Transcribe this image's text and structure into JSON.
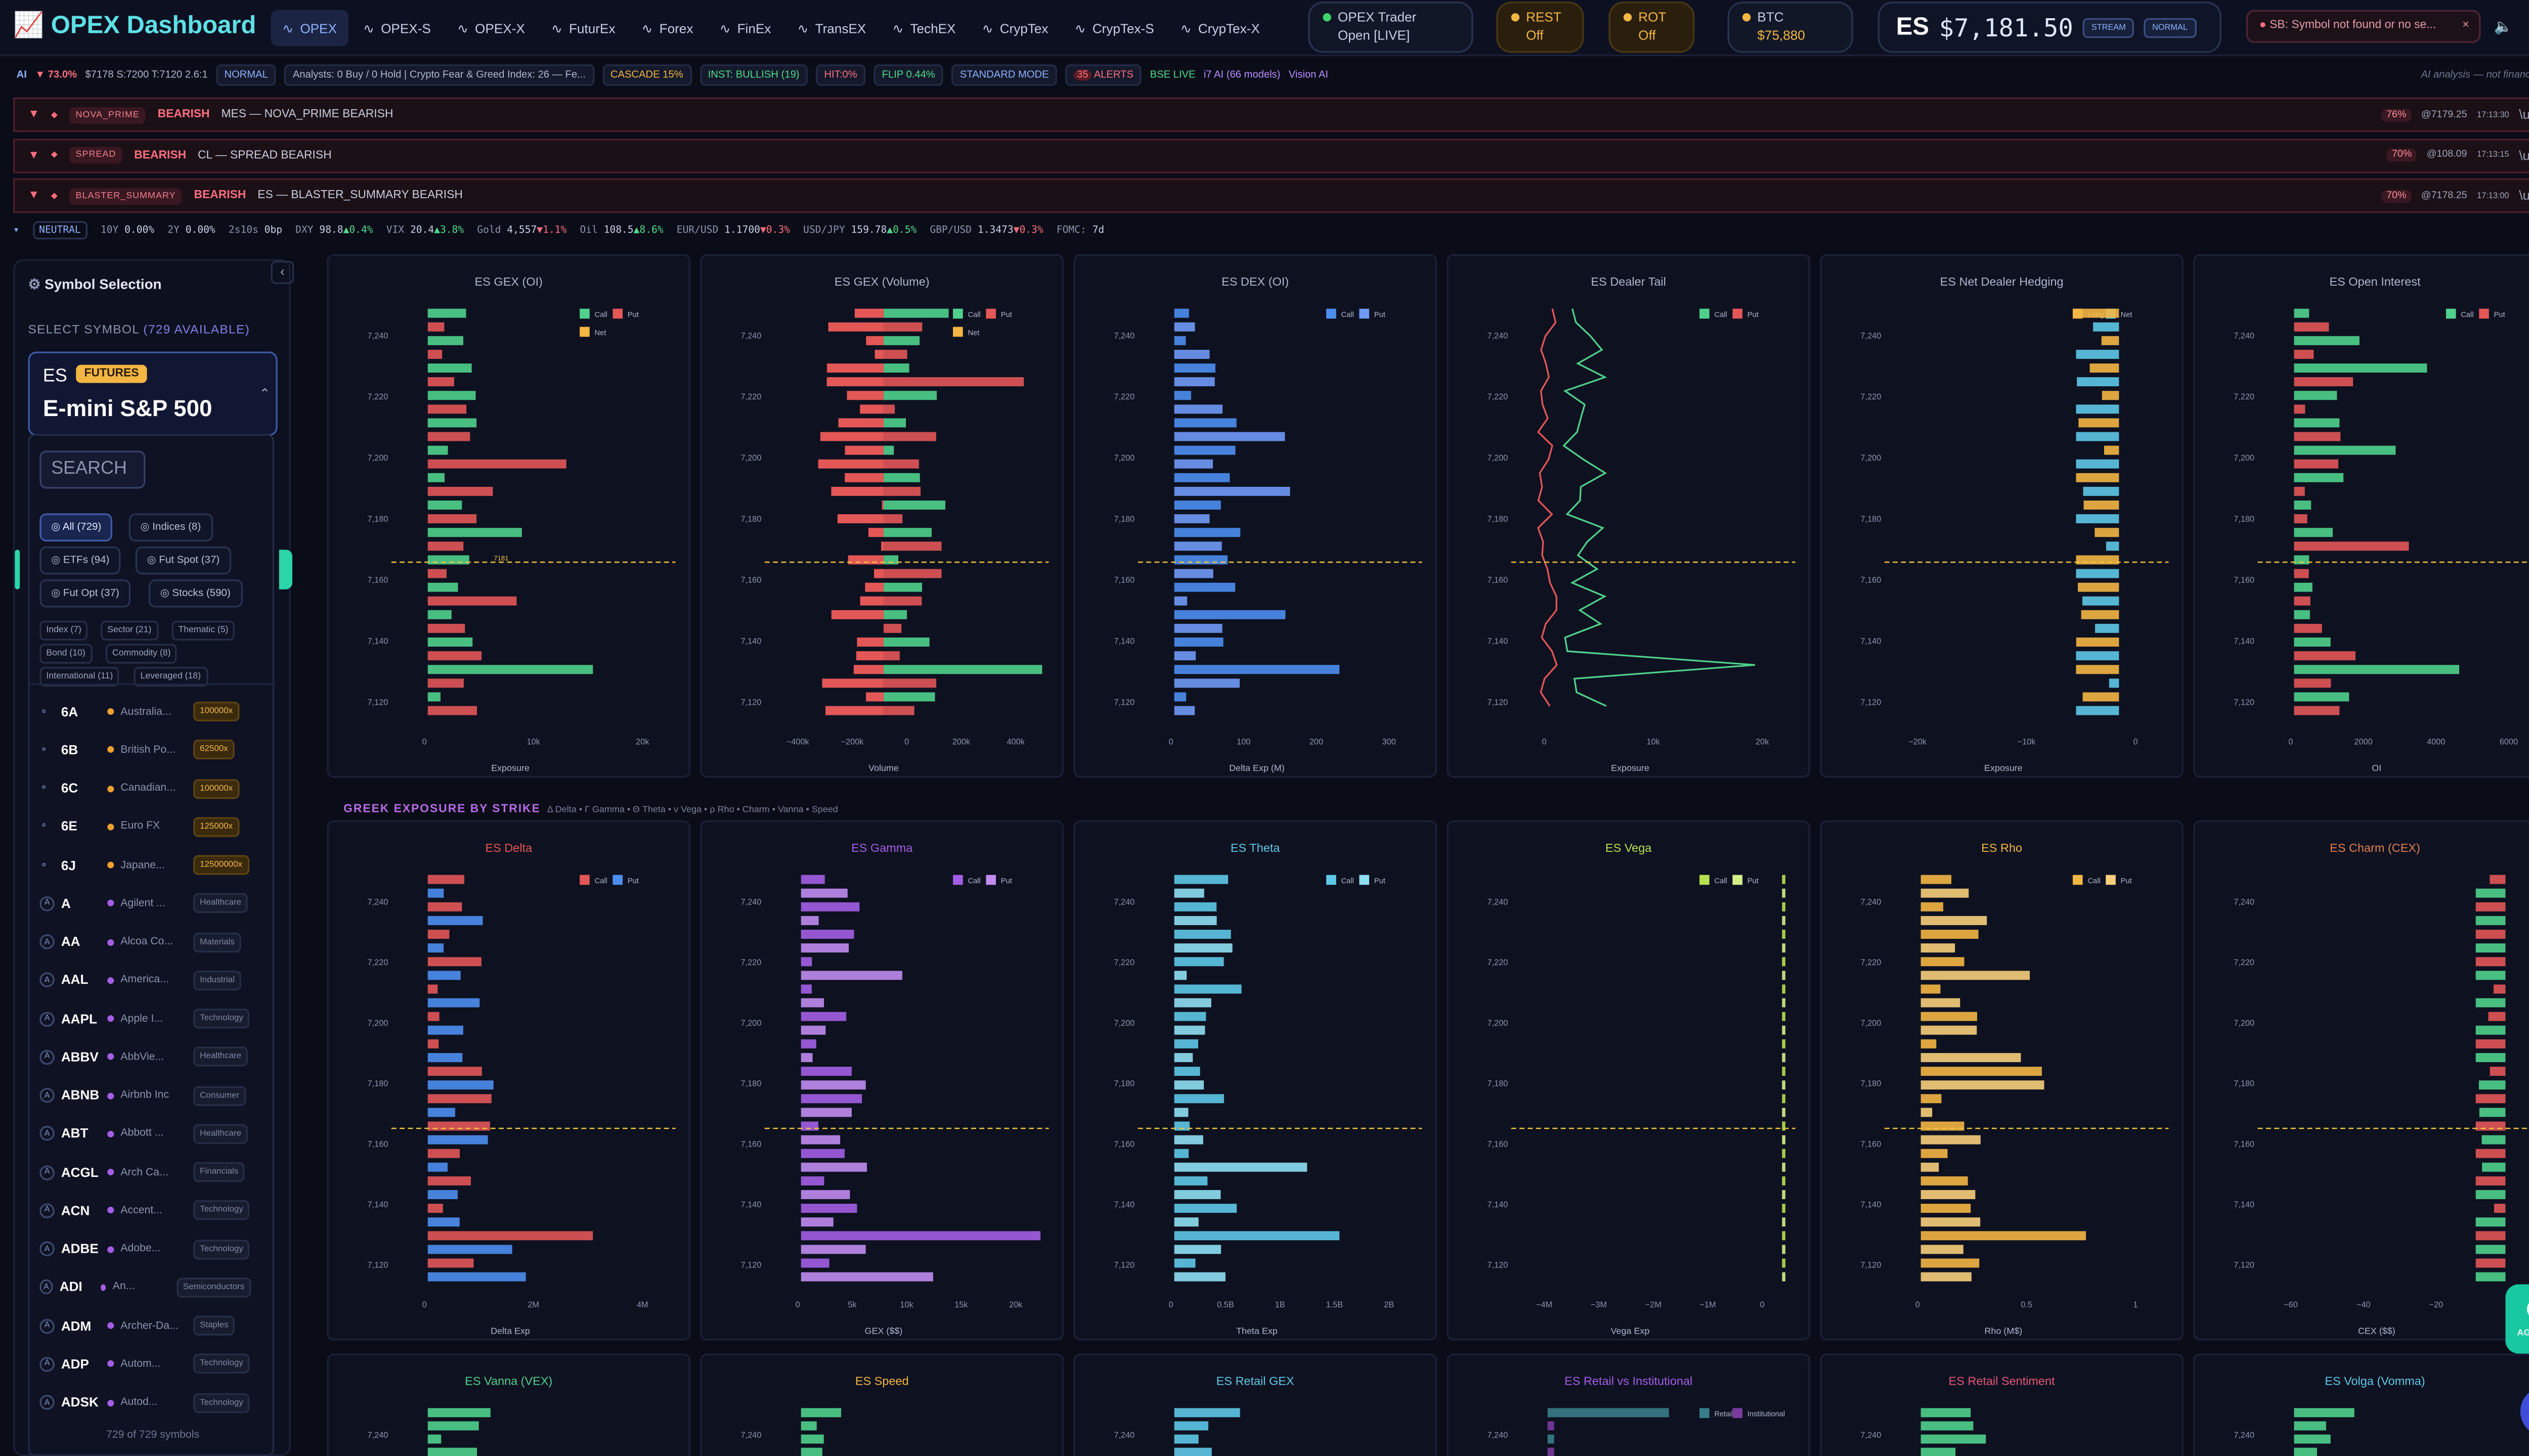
{
  "app": {
    "logo": "OPEX Dashboard"
  },
  "nav": [
    "OPEX",
    "OPEX-S",
    "OPEX-X",
    "FuturEx",
    "Forex",
    "FinEx",
    "TransEX",
    "TechEX",
    "CrypTex",
    "CrypTex-S",
    "CrypTex-X"
  ],
  "status": {
    "trader_line1": "OPEX Trader",
    "trader_line2": "Open [LIVE]",
    "rest_line1": "REST",
    "rest_line2": "Off",
    "rot_line1": "ROT",
    "rot_line2": "Off",
    "btc_line1": "BTC",
    "btc_line2": "$75,880"
  },
  "price": {
    "symbol": "ES",
    "value": "$7,181.50",
    "stream": "STREAM",
    "mode": "NORMAL"
  },
  "error": "SB: Symbol not found or no se...",
  "ai_strip": {
    "ai": "AI",
    "conf": "▼ 73.0%",
    "levels": "$7178 S:7200 T:7120 2.6:1",
    "normal": "NORMAL",
    "analysts": "Analysts: 0 Buy / 0 Hold | Crypto Fear & Greed Index: 26 — Fe...",
    "cascade": "CASCADE 15%",
    "inst": "INST: BULLISH (19)",
    "hit": "HIT:0%",
    "flip": "FLIP 0.44%",
    "std": "STANDARD MODE",
    "alerts": "ALERTS",
    "alerts_count": "35",
    "bse": "BSE LIVE",
    "i7": "i7 AI (66 models)",
    "vision": "Vision AI",
    "disclaimer": "AI analysis — not financial advice"
  },
  "alerts": [
    {
      "tag": "NOVA_PRIME",
      "dir": "BEARISH",
      "text": "MES — NOVA_PRIME BEARISH",
      "pct": "76%",
      "price": "@7179.25",
      "time": "17:13:30",
      "code": "\\u00D7"
    },
    {
      "tag": "SPREAD",
      "dir": "BEARISH",
      "text": "CL — SPREAD BEARISH",
      "pct": "70%",
      "price": "@108.09",
      "time": "17:13:15",
      "code": "\\u00D7"
    },
    {
      "tag": "BLASTER_SUMMARY",
      "dir": "BEARISH",
      "text": "ES — BLASTER_SUMMARY BEARISH",
      "pct": "70%",
      "price": "@7178.25",
      "time": "17:13:00",
      "code": "\\u00D7"
    }
  ],
  "macro": [
    {
      "k": "NEUTRAL",
      "v": "",
      "c": ""
    },
    {
      "k": "10Y",
      "v": "0.00%",
      "c": ""
    },
    {
      "k": "2Y",
      "v": "0.00%",
      "c": ""
    },
    {
      "k": "2s10s",
      "v": "0bp",
      "c": ""
    },
    {
      "k": "DXY",
      "v": "98.8",
      "c": "▲0.4%"
    },
    {
      "k": "VIX",
      "v": "20.4",
      "c": "▲3.8%"
    },
    {
      "k": "Gold",
      "v": "4,557",
      "c": "▼1.1%"
    },
    {
      "k": "Oil",
      "v": "108.5",
      "c": "▲8.6%"
    },
    {
      "k": "EUR/USD",
      "v": "1.1700",
      "c": "▼0.3%"
    },
    {
      "k": "USD/JPY",
      "v": "159.78",
      "c": "▲0.5%"
    },
    {
      "k": "GBP/USD",
      "v": "1.3473",
      "c": "▼0.3%"
    },
    {
      "k": "FOMC:",
      "v": "7d",
      "c": ""
    }
  ],
  "sidebar": {
    "title": "Symbol Selection",
    "select_label": "SELECT SYMBOL",
    "available": "(729 AVAILABLE)",
    "selected_sym": "ES",
    "selected_type": "FUTURES",
    "selected_name": "E-mini S&P 500",
    "search_placeholder": "SEARCH",
    "filters": [
      "All (729)",
      "Indices (8)",
      "ETFs (94)",
      "Fut Spot (37)",
      "Fut Opt (37)",
      "Stocks (590)"
    ],
    "subfilters": [
      "Index (7)",
      "Sector (21)",
      "Thematic (5)",
      "Bond (10)",
      "Commodity (8)",
      "International (11)",
      "Leveraged (18)"
    ],
    "symbols": [
      {
        "t": "6A",
        "n": "Australia...",
        "b": "100000x",
        "k": "mult"
      },
      {
        "t": "6B",
        "n": "British Po...",
        "b": "62500x",
        "k": "mult"
      },
      {
        "t": "6C",
        "n": "Canadian...",
        "b": "100000x",
        "k": "mult"
      },
      {
        "t": "6E",
        "n": "Euro FX",
        "b": "125000x",
        "k": "mult"
      },
      {
        "t": "6J",
        "n": "Japane...",
        "b": "12500000x",
        "k": "mult"
      },
      {
        "t": "A",
        "n": "Agilent ...",
        "b": "Healthcare",
        "k": "sec"
      },
      {
        "t": "AA",
        "n": "Alcoa Co...",
        "b": "Materials",
        "k": "sec"
      },
      {
        "t": "AAL",
        "n": "America...",
        "b": "Industrial",
        "k": "sec"
      },
      {
        "t": "AAPL",
        "n": "Apple I...",
        "b": "Technology",
        "k": "sec"
      },
      {
        "t": "ABBV",
        "n": "AbbVie...",
        "b": "Healthcare",
        "k": "sec"
      },
      {
        "t": "ABNB",
        "n": "Airbnb Inc",
        "b": "Consumer",
        "k": "sec"
      },
      {
        "t": "ABT",
        "n": "Abbott ...",
        "b": "Healthcare",
        "k": "sec"
      },
      {
        "t": "ACGL",
        "n": "Arch Ca...",
        "b": "Financials",
        "k": "sec"
      },
      {
        "t": "ACN",
        "n": "Accent...",
        "b": "Technology",
        "k": "sec"
      },
      {
        "t": "ADBE",
        "n": "Adobe...",
        "b": "Technology",
        "k": "sec"
      },
      {
        "t": "ADI",
        "n": "An...",
        "b": "Semiconductors",
        "k": "sec"
      },
      {
        "t": "ADM",
        "n": "Archer-Da...",
        "b": "Staples",
        "k": "sec"
      },
      {
        "t": "ADP",
        "n": "Autom...",
        "b": "Technology",
        "k": "sec"
      },
      {
        "t": "ADSK",
        "n": "Autod...",
        "b": "Technology",
        "k": "sec"
      }
    ],
    "footer": "729 of 729 symbols"
  },
  "greek_header": {
    "title": "GREEK EXPOSURE BY STRIKE",
    "sub": "Δ Delta • Γ Gamma • Θ Theta • ν Vega • ρ Rho • Charm • Vanna • Speed"
  },
  "agents_label": "AGENTS",
  "chart_data": [
    {
      "id": "gex-oi",
      "type": "bar",
      "title": "ES GEX (OI)",
      "xlabel": "Exposure",
      "xticks": [
        "0",
        "10k",
        "20k"
      ],
      "legend": [
        "Call",
        "Put",
        "Net"
      ],
      "yticks": [
        "7,240",
        "7,220",
        "7,200",
        "7,180",
        "7,160",
        "7,140",
        "7,120"
      ],
      "spot": "7181"
    },
    {
      "id": "gex-vol",
      "type": "bar",
      "title": "ES GEX (Volume)",
      "xlabel": "Volume",
      "xticks": [
        "−400k",
        "−200k",
        "0",
        "200k",
        "400k"
      ],
      "legend": [
        "Call",
        "Put",
        "Net"
      ],
      "yticks": [
        "7,240",
        "7,220",
        "7,200",
        "7,180",
        "7,160",
        "7,140",
        "7,120"
      ]
    },
    {
      "id": "dex-oi",
      "type": "bar",
      "title": "ES DEX (OI)",
      "xlabel": "Delta Exp (M)",
      "xticks": [
        "0",
        "100",
        "200",
        "300"
      ],
      "legend": [
        "Call",
        "Put"
      ],
      "yticks": [
        "7,240",
        "7,220",
        "7,200",
        "7,180",
        "7,160",
        "7,140",
        "7,120"
      ]
    },
    {
      "id": "dealer-tail",
      "type": "line",
      "title": "ES Dealer Tail",
      "xlabel": "Exposure",
      "xticks": [
        "0",
        "10k",
        "20k"
      ],
      "legend": [
        "Call",
        "Put"
      ],
      "yticks": [
        "7,240",
        "7,220",
        "7,200",
        "7,180",
        "7,160",
        "7,140",
        "7,120"
      ]
    },
    {
      "id": "net-hedging",
      "type": "bar",
      "title": "ES Net Dealer Hedging",
      "xlabel": "Exposure",
      "xticks": [
        "−20k",
        "−10k",
        "0"
      ],
      "legend": [
        "Long",
        "Net"
      ],
      "yticks": [
        "7,240",
        "7,220",
        "7,200",
        "7,180",
        "7,160",
        "7,140",
        "7,120"
      ]
    },
    {
      "id": "open-interest",
      "type": "bar",
      "title": "ES Open Interest",
      "xlabel": "OI",
      "xticks": [
        "0",
        "2000",
        "4000",
        "6000"
      ],
      "legend": [
        "Call",
        "Put"
      ],
      "yticks": [
        "7,240",
        "7,220",
        "7,200",
        "7,180",
        "7,160",
        "7,140",
        "7,120"
      ]
    },
    {
      "id": "delta",
      "type": "bar",
      "title": "ES Delta",
      "xlabel": "Delta Exp",
      "xticks": [
        "0",
        "2M",
        "4M"
      ],
      "legend": [
        "Call",
        "Put"
      ],
      "yticks": [
        "7,240",
        "7,220",
        "7,200",
        "7,180",
        "7,160",
        "7,140",
        "7,120"
      ]
    },
    {
      "id": "gamma",
      "type": "bar",
      "title": "ES Gamma",
      "xlabel": "GEX ($$)",
      "xticks": [
        "0",
        "5k",
        "10k",
        "15k",
        "20k"
      ],
      "legend": [
        "Call",
        "Put"
      ],
      "yticks": [
        "7,240",
        "7,220",
        "7,200",
        "7,180",
        "7,160",
        "7,140",
        "7,120"
      ]
    },
    {
      "id": "theta",
      "type": "bar",
      "title": "ES Theta",
      "xlabel": "Theta Exp",
      "xticks": [
        "0",
        "0.5B",
        "1B",
        "1.5B",
        "2B"
      ],
      "legend": [
        "Call",
        "Put"
      ],
      "yticks": [
        "7,240",
        "7,220",
        "7,200",
        "7,180",
        "7,160",
        "7,140",
        "7,120"
      ]
    },
    {
      "id": "vega",
      "type": "bar",
      "title": "ES Vega",
      "xlabel": "Vega Exp",
      "xticks": [
        "−4M",
        "−3M",
        "−2M",
        "−1M",
        "0"
      ],
      "legend": [
        "Call",
        "Put"
      ],
      "yticks": [
        "7,240",
        "7,220",
        "7,200",
        "7,180",
        "7,160",
        "7,140",
        "7,120"
      ]
    },
    {
      "id": "rho",
      "type": "bar",
      "title": "ES Rho",
      "xlabel": "Rho (M$)",
      "xticks": [
        "0",
        "0.5",
        "1"
      ],
      "legend": [
        "Call",
        "Put"
      ],
      "yticks": [
        "7,240",
        "7,220",
        "7,200",
        "7,180",
        "7,160",
        "7,140",
        "7,120"
      ]
    },
    {
      "id": "charm",
      "type": "bar",
      "title": "ES Charm (CEX)",
      "xlabel": "CEX ($$)",
      "xticks": [
        "−60",
        "−40",
        "−20",
        "0"
      ],
      "legend": [],
      "yticks": [
        "7,240",
        "7,220",
        "7,200",
        "7,180",
        "7,160",
        "7,140",
        "7,120"
      ]
    },
    {
      "id": "vanna",
      "type": "bar",
      "title": "ES Vanna (VEX)",
      "xlabel": "",
      "xticks": [],
      "legend": [],
      "yticks": [
        "7,240"
      ]
    },
    {
      "id": "speed",
      "type": "bar",
      "title": "ES Speed",
      "xlabel": "",
      "xticks": [],
      "legend": [],
      "yticks": [
        "7,240"
      ]
    },
    {
      "id": "retail-gex",
      "type": "bar",
      "title": "ES Retail GEX",
      "xlabel": "",
      "xticks": [],
      "legend": [],
      "yticks": [
        "7,240"
      ]
    },
    {
      "id": "retail-inst",
      "type": "bar",
      "title": "ES Retail vs Institutional",
      "xlabel": "",
      "xticks": [],
      "legend": [
        "Retail",
        "Institutional"
      ],
      "yticks": [
        "7,240"
      ]
    },
    {
      "id": "retail-sent",
      "type": "bar",
      "title": "ES Retail Sentiment",
      "xlabel": "",
      "xticks": [],
      "legend": [],
      "yticks": [
        "7,240"
      ]
    },
    {
      "id": "volga",
      "type": "bar",
      "title": "ES Volga (Vomma)",
      "xlabel": "",
      "xticks": [],
      "legend": [],
      "yticks": [
        "7,240"
      ]
    }
  ],
  "colors": {
    "call": "#4fd18b",
    "put": "#e35757",
    "net": "#f3b642",
    "delta": "#e35757",
    "gamma": "#a45ee6",
    "theta": "#5ec8e6",
    "vega": "#b7e04f",
    "rho": "#f3b642",
    "dex": "#4d8ff0",
    "spot": "#f3c63a",
    "accent": "#5de0e6"
  }
}
